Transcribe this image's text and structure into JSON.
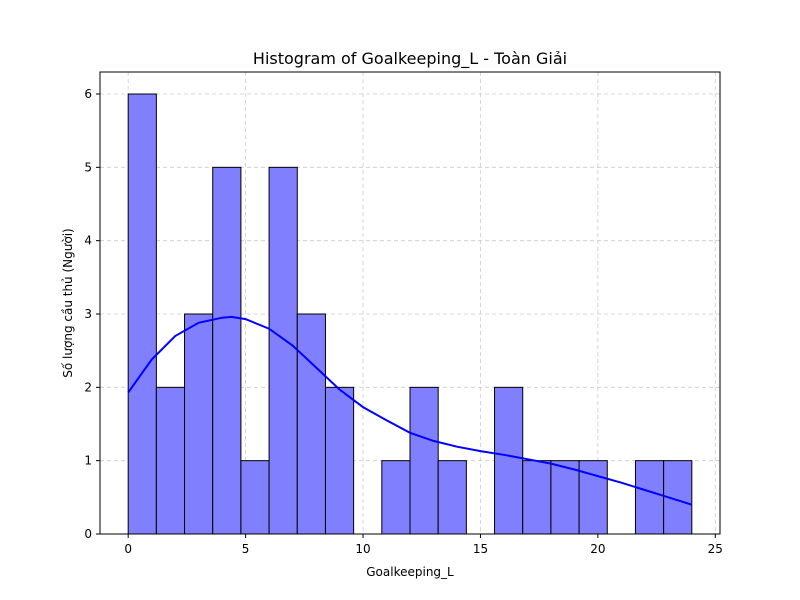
{
  "chart_data": {
    "type": "bar",
    "title": "Histogram of Goalkeeping_L - Toàn Giải",
    "xlabel": "Goalkeeping_L",
    "ylabel": "Số lượng cầu thủ (Người)",
    "xlim": [
      -1.2,
      25.2
    ],
    "ylim": [
      0,
      6.3
    ],
    "xticks": [
      0,
      5,
      10,
      15,
      20,
      25
    ],
    "yticks": [
      0,
      1,
      2,
      3,
      4,
      5,
      6
    ],
    "grid": true,
    "bin_start": 0,
    "bin_width": 1.2,
    "counts": [
      6,
      2,
      3,
      5,
      1,
      5,
      3,
      2,
      0,
      1,
      2,
      1,
      0,
      2,
      1,
      1,
      1,
      0,
      1,
      1
    ],
    "kde": {
      "x": [
        0,
        1,
        2,
        3,
        4,
        4.4,
        5,
        6,
        7,
        8,
        9,
        10,
        11,
        12,
        13,
        14,
        15,
        16,
        17,
        18,
        19,
        20,
        21,
        22,
        23,
        24
      ],
      "y": [
        1.93,
        2.38,
        2.7,
        2.88,
        2.95,
        2.96,
        2.93,
        2.8,
        2.57,
        2.27,
        1.97,
        1.73,
        1.55,
        1.38,
        1.27,
        1.19,
        1.13,
        1.08,
        1.02,
        0.96,
        0.88,
        0.79,
        0.7,
        0.6,
        0.5,
        0.4
      ]
    },
    "colors": {
      "bar_fill": "#8080ff",
      "bar_edge": "#000000",
      "kde_line": "#0000ff",
      "grid": "#cccccc"
    }
  }
}
